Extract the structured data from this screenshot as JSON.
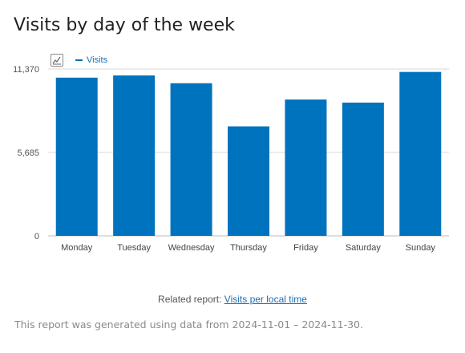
{
  "page": {
    "title": "Visits by day of the week",
    "related_prefix": "Related report:",
    "related_link": "Visits per local time",
    "footer_note": "This report was generated using data from 2024-11-01 – 2024-11-30."
  },
  "legend": {
    "label": "Visits",
    "color": "#0073be"
  },
  "icons": {
    "chart_toggle": "line-chart-icon"
  },
  "chart_data": {
    "type": "bar",
    "title": "",
    "xlabel": "",
    "ylabel": "",
    "categories": [
      "Monday",
      "Tuesday",
      "Wednesday",
      "Thursday",
      "Friday",
      "Saturday",
      "Sunday"
    ],
    "series": [
      {
        "name": "Visits",
        "color": "#0073be",
        "values": [
          10780,
          10930,
          10400,
          7460,
          9290,
          9080,
          11170
        ]
      }
    ],
    "ylim": [
      0,
      11370
    ],
    "yticks": [
      "0",
      "5,685",
      "11,370"
    ],
    "ytick_values": [
      0,
      5685,
      11370
    ],
    "grid": true,
    "legend_position": "top-left"
  }
}
